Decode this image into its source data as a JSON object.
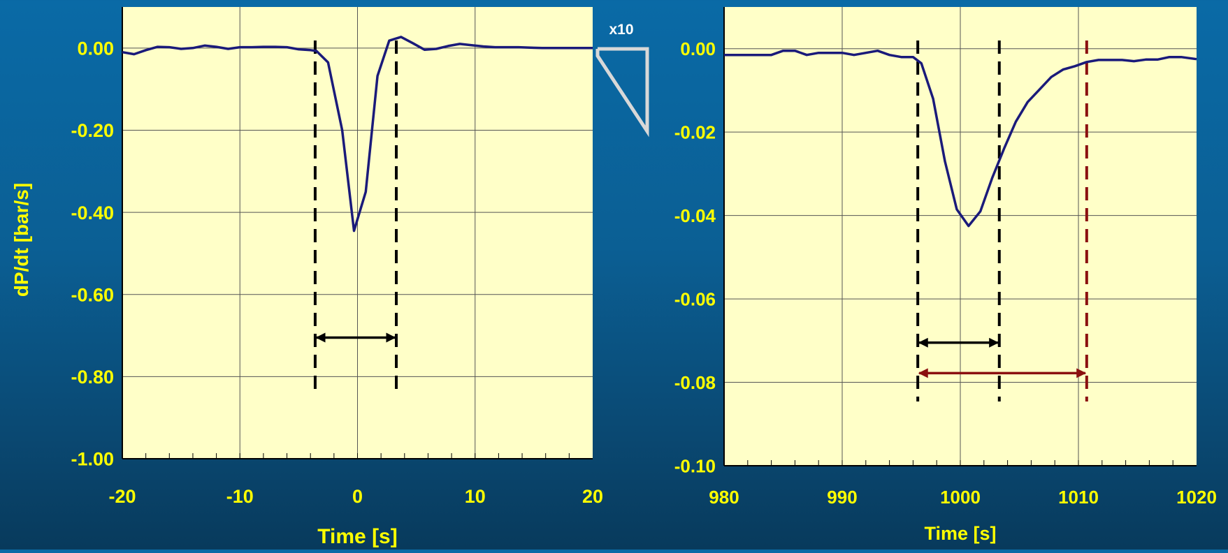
{
  "colors": {
    "plot_bg": "#ffffc8",
    "grid": "#555555",
    "curve": "#1a1a7a",
    "label": "#ffff00",
    "marker_black": "#000000",
    "marker_red": "#8b1010",
    "zoom_callout": "#d8d8d8"
  },
  "zoom_label": "x10",
  "chart_data": [
    {
      "type": "line",
      "ylabel": "dP/dt [bar/s]",
      "xlabel": "Time [s]",
      "xlim": [
        -20,
        20
      ],
      "ylim": [
        -1.0,
        0.1
      ],
      "x_ticks": [
        -20,
        -10,
        0,
        10,
        20
      ],
      "x_tick_labels": [
        "-20",
        "-10",
        "0",
        "10",
        "20"
      ],
      "y_ticks": [
        0.0,
        -0.2,
        -0.4,
        -0.6,
        -0.8,
        -1.0
      ],
      "y_tick_labels": [
        "0.00",
        "-0.20",
        "-0.40",
        "-0.60",
        "-0.80",
        "-1.00"
      ],
      "grid": true,
      "series": [
        {
          "x": [
            -20,
            -19,
            -18,
            -17,
            -16,
            -15,
            -14,
            -13,
            -12,
            -11,
            -10,
            -9,
            -8,
            -7,
            -6,
            -5,
            -4,
            -3.5,
            -2.5,
            -1.3,
            -0.3,
            0.7,
            1.7,
            2.7,
            3.7,
            4.7,
            5.7,
            6.7,
            7.7,
            8.7,
            9.7,
            10.7,
            11.7,
            12.7,
            13.7,
            14.7,
            15.7,
            16.7,
            17.7,
            18.7,
            20
          ],
          "y": [
            -0.01,
            -0.015,
            -0.005,
            0.003,
            0.002,
            -0.002,
            0.0,
            0.006,
            0.003,
            -0.002,
            0.002,
            0.002,
            0.003,
            0.003,
            0.002,
            -0.003,
            -0.005,
            -0.007,
            -0.035,
            -0.2,
            -0.445,
            -0.35,
            -0.068,
            0.018,
            0.027,
            0.012,
            -0.004,
            -0.002,
            0.005,
            0.01,
            0.007,
            0.004,
            0.002,
            0.002,
            0.002,
            0.001,
            0.0,
            0.0,
            0.0,
            0.0,
            0.0
          ]
        }
      ],
      "markers": [
        {
          "x": -3.6,
          "color": "black"
        },
        {
          "x": 3.3,
          "color": "black"
        }
      ],
      "spans": [
        {
          "x1": -3.6,
          "x2": 3.3,
          "y": -0.705,
          "color": "black"
        }
      ]
    },
    {
      "type": "line",
      "ylabel": "",
      "xlabel": "Time [s]",
      "xlim": [
        980,
        1020
      ],
      "ylim": [
        -0.1,
        0.01
      ],
      "x_ticks": [
        980,
        990,
        1000,
        1010,
        1020
      ],
      "x_tick_labels": [
        "980",
        "990",
        "1000",
        "1010",
        "1020"
      ],
      "y_ticks": [
        0.0,
        -0.02,
        -0.04,
        -0.06,
        -0.08,
        -0.1
      ],
      "y_tick_labels": [
        "0.00",
        "-0.02",
        "-0.04",
        "-0.06",
        "-0.08",
        "-0.10"
      ],
      "grid": true,
      "series": [
        {
          "x": [
            980,
            981,
            982,
            983,
            984,
            985,
            986,
            987,
            988,
            989,
            990,
            991,
            992,
            993,
            994,
            995,
            996,
            996.7,
            997.7,
            998.7,
            999.7,
            1000.7,
            1001.7,
            1002.7,
            1003.7,
            1004.7,
            1005.7,
            1006.7,
            1007.7,
            1008.7,
            1009.7,
            1010.7,
            1011.7,
            1012.7,
            1013.7,
            1014.7,
            1015.7,
            1016.7,
            1017.7,
            1018.7,
            1020
          ],
          "y": [
            -0.0015,
            -0.0015,
            -0.0015,
            -0.0015,
            -0.0015,
            -0.0005,
            -0.0005,
            -0.0015,
            -0.001,
            -0.001,
            -0.001,
            -0.0015,
            -0.001,
            -0.0005,
            -0.0015,
            -0.002,
            -0.002,
            -0.0035,
            -0.012,
            -0.027,
            -0.0385,
            -0.0425,
            -0.039,
            -0.031,
            -0.024,
            -0.0175,
            -0.0128,
            -0.0098,
            -0.0068,
            -0.005,
            -0.0042,
            -0.0032,
            -0.0027,
            -0.0027,
            -0.0027,
            -0.003,
            -0.0026,
            -0.0026,
            -0.002,
            -0.002,
            -0.0025
          ]
        }
      ],
      "markers": [
        {
          "x": 996.4,
          "color": "black"
        },
        {
          "x": 1003.3,
          "color": "black"
        },
        {
          "x": 1010.7,
          "color": "red"
        }
      ],
      "spans": [
        {
          "x1": 996.4,
          "x2": 1003.3,
          "y": -0.0705,
          "color": "black"
        },
        {
          "x1": 996.4,
          "x2": 1010.7,
          "y": -0.0778,
          "color": "red"
        }
      ]
    }
  ]
}
